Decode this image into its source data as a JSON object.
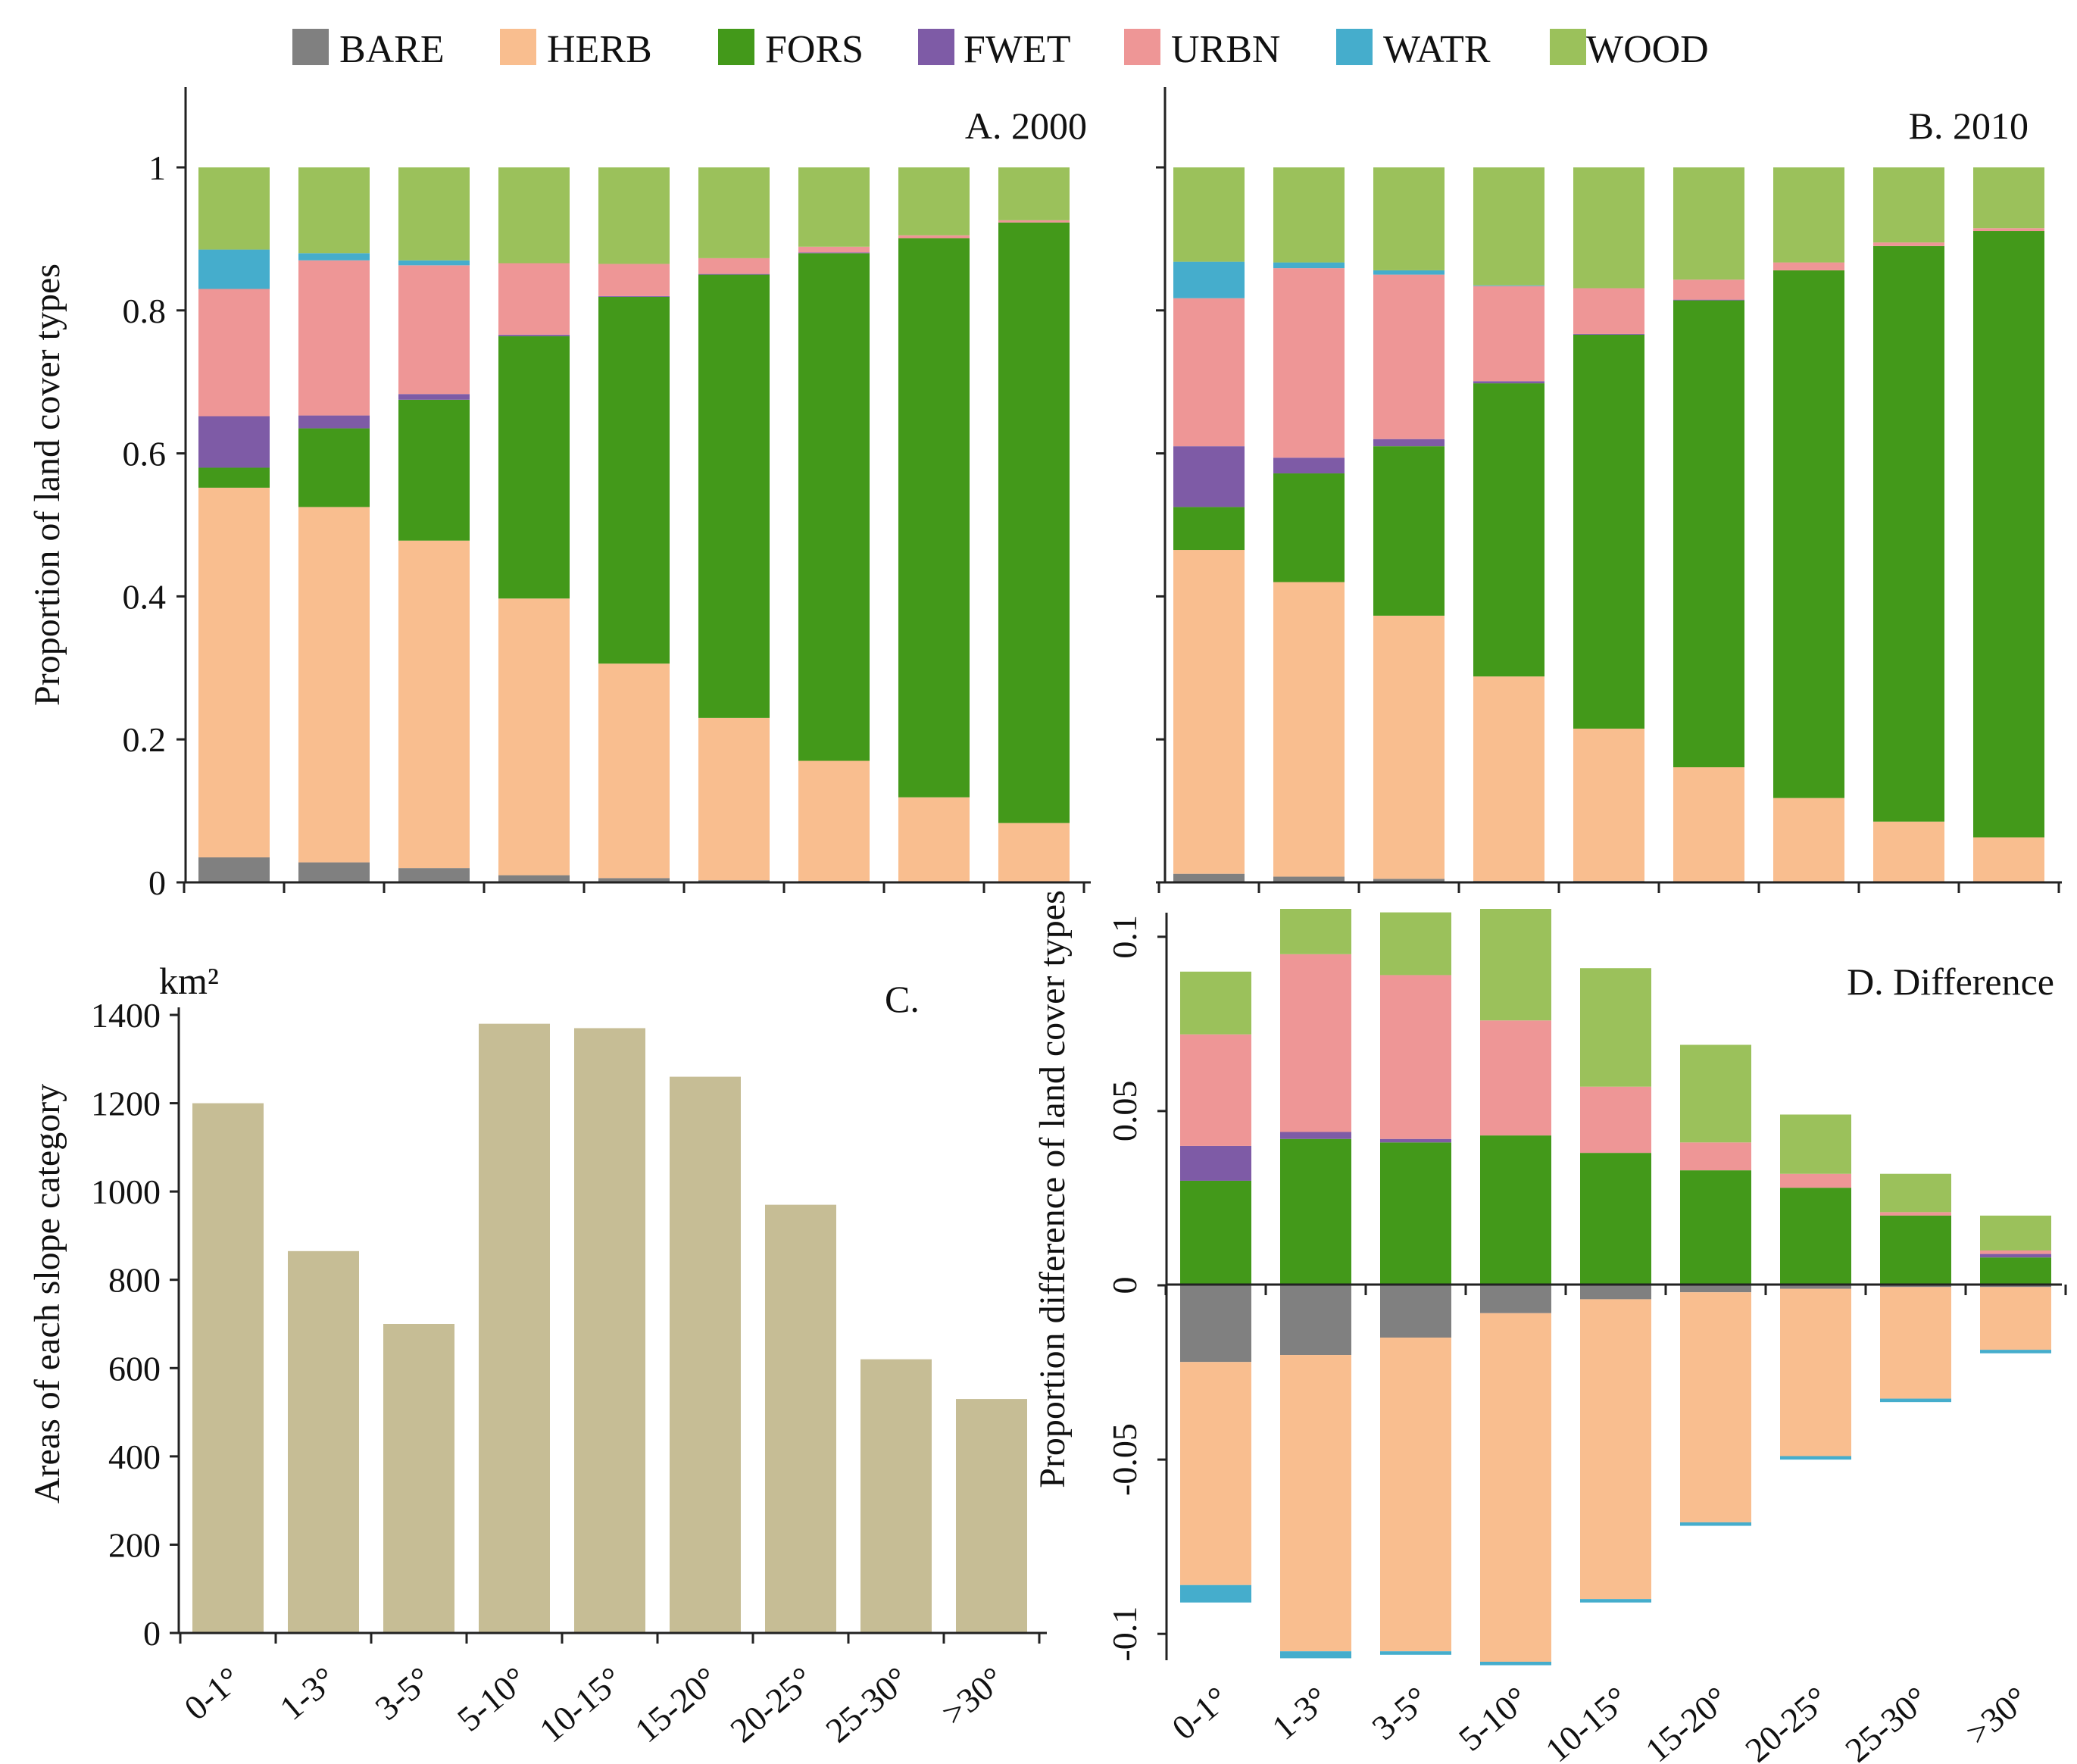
{
  "legend": [
    {
      "key": "BARE",
      "label": "BARE",
      "color": "#808080"
    },
    {
      "key": "HERB",
      "label": "HERB",
      "color": "#F9BE8F"
    },
    {
      "key": "FORS",
      "label": "FORS",
      "color": "#43991A"
    },
    {
      "key": "FWET",
      "label": "FWET",
      "color": "#7E5BA6"
    },
    {
      "key": "URBN",
      "label": "URBN",
      "color": "#EE9696"
    },
    {
      "key": "WATR",
      "label": "WATR",
      "color": "#45ADCC"
    },
    {
      "key": "WOOD",
      "label": "WOOD",
      "color": "#9BC15B"
    }
  ],
  "chart_data": [
    {
      "id": "A",
      "type": "bar",
      "stacked": true,
      "title": "A. 2000",
      "xlabel": "",
      "ylabel": "Proportion of land cover types",
      "ylim": [
        0,
        1
      ],
      "yticks": [
        0,
        0.2,
        0.4,
        0.6,
        0.8,
        1
      ],
      "ytick_labels": [
        "0",
        "0.2",
        "0.4",
        "0.6",
        "0.8",
        "1"
      ],
      "categories": [
        "0-1°",
        "1-3°",
        "3-5°",
        "5-10°",
        "10-15°",
        "15-20°",
        "20-25°",
        "25-30°",
        ">30°"
      ],
      "series": [
        {
          "name": "BARE",
          "values": [
            0.035,
            0.028,
            0.02,
            0.01,
            0.006,
            0.003,
            0.002,
            0.001,
            0.001
          ]
        },
        {
          "name": "HERB",
          "values": [
            0.517,
            0.497,
            0.458,
            0.387,
            0.3,
            0.227,
            0.168,
            0.118,
            0.082
          ]
        },
        {
          "name": "FORS",
          "values": [
            0.028,
            0.11,
            0.197,
            0.367,
            0.513,
            0.62,
            0.71,
            0.782,
            0.84
          ]
        },
        {
          "name": "FWET",
          "values": [
            0.072,
            0.018,
            0.008,
            0.002,
            0.001,
            0.001,
            0.001,
            0.0,
            0.0
          ]
        },
        {
          "name": "URBN",
          "values": [
            0.178,
            0.217,
            0.18,
            0.1,
            0.045,
            0.022,
            0.008,
            0.004,
            0.003
          ]
        },
        {
          "name": "WATR",
          "values": [
            0.055,
            0.01,
            0.007,
            0.0,
            0.0,
            0.0,
            0.0,
            0.0,
            0.0
          ]
        },
        {
          "name": "WOOD",
          "values": [
            0.115,
            0.12,
            0.13,
            0.134,
            0.135,
            0.127,
            0.111,
            0.095,
            0.074
          ]
        }
      ]
    },
    {
      "id": "B",
      "type": "bar",
      "stacked": true,
      "title": "B. 2010",
      "xlabel": "",
      "ylabel": "",
      "ylim": [
        0,
        1
      ],
      "yticks": [
        0,
        0.2,
        0.4,
        0.6,
        0.8,
        1
      ],
      "categories": [
        "0-1°",
        "1-3°",
        "3-5°",
        "5-10°",
        "10-15°",
        "15-20°",
        "20-25°",
        "25-30°",
        ">30°"
      ],
      "series": [
        {
          "name": "BARE",
          "values": [
            0.012,
            0.008,
            0.005,
            0.002,
            0.002,
            0.001,
            0.001,
            0.001,
            0.001
          ]
        },
        {
          "name": "HERB",
          "values": [
            0.453,
            0.412,
            0.368,
            0.286,
            0.213,
            0.16,
            0.117,
            0.084,
            0.062
          ]
        },
        {
          "name": "FORS",
          "values": [
            0.06,
            0.152,
            0.237,
            0.41,
            0.551,
            0.653,
            0.738,
            0.805,
            0.848
          ]
        },
        {
          "name": "FWET",
          "values": [
            0.085,
            0.022,
            0.01,
            0.003,
            0.001,
            0.001,
            0.0,
            0.0,
            0.0
          ]
        },
        {
          "name": "URBN",
          "values": [
            0.207,
            0.265,
            0.23,
            0.133,
            0.064,
            0.028,
            0.011,
            0.005,
            0.004
          ]
        },
        {
          "name": "WATR",
          "values": [
            0.051,
            0.008,
            0.006,
            0.001,
            0.0,
            0.0,
            0.0,
            0.0,
            0.0
          ]
        },
        {
          "name": "WOOD",
          "values": [
            0.132,
            0.133,
            0.144,
            0.165,
            0.169,
            0.157,
            0.133,
            0.105,
            0.085
          ]
        }
      ]
    },
    {
      "id": "C",
      "type": "bar",
      "title": "C.",
      "unit_label": "km²",
      "xlabel": "",
      "ylabel": "Areas of each slope category",
      "ylim": [
        0,
        1400
      ],
      "yticks": [
        0,
        200,
        400,
        600,
        800,
        1000,
        1200,
        1400
      ],
      "ytick_labels": [
        "0",
        "200",
        "400",
        "600",
        "800",
        "1000",
        "1200",
        "1400"
      ],
      "categories": [
        "0-1°",
        "1-3°",
        "3-5°",
        "5-10°",
        "10-15°",
        "15-20°",
        "20-25°",
        "25-30°",
        ">30°"
      ],
      "color": "#C6BD95",
      "values": [
        1200,
        865,
        700,
        1380,
        1370,
        1260,
        970,
        620,
        530
      ]
    },
    {
      "id": "D",
      "type": "bar",
      "stacked": true,
      "diverging": true,
      "title": "D. Difference",
      "xlabel": "",
      "ylabel": "Proportion difference of land cover types",
      "ylim": [
        -0.108,
        0.108
      ],
      "yticks": [
        -0.1,
        -0.05,
        0,
        0.05,
        0.1
      ],
      "ytick_labels": [
        "-0.1",
        "-0.05",
        "0",
        "0.05",
        "0.1"
      ],
      "categories": [
        "0-1°",
        "1-3°",
        "3-5°",
        "5-10°",
        "10-15°",
        "15-20°",
        "20-25°",
        "25-30°",
        ">30°"
      ],
      "series": [
        {
          "name": "BARE",
          "values": [
            -0.022,
            -0.02,
            -0.015,
            -0.008,
            -0.004,
            -0.002,
            -0.001,
            -0.0005,
            -0.0005
          ]
        },
        {
          "name": "HERB",
          "values": [
            -0.064,
            -0.085,
            -0.09,
            -0.1,
            -0.086,
            -0.066,
            -0.048,
            -0.032,
            -0.018
          ]
        },
        {
          "name": "FORS",
          "values": [
            0.03,
            0.042,
            0.041,
            0.043,
            0.038,
            0.033,
            0.028,
            0.02,
            0.008
          ]
        },
        {
          "name": "FWET",
          "values": [
            0.01,
            0.002,
            0.001,
            0.0,
            0.0,
            0.0,
            0.0,
            0.0,
            0.001
          ]
        },
        {
          "name": "URBN",
          "values": [
            0.032,
            0.051,
            0.047,
            0.033,
            0.019,
            0.008,
            0.004,
            0.001,
            0.001
          ]
        },
        {
          "name": "WATR",
          "values": [
            -0.005,
            -0.002,
            -0.001,
            -0.001,
            -0.001,
            -0.001,
            -0.001,
            -0.001,
            -0.001
          ]
        },
        {
          "name": "WOOD",
          "values": [
            0.018,
            0.013,
            0.018,
            0.032,
            0.034,
            0.028,
            0.017,
            0.011,
            0.01
          ]
        }
      ]
    }
  ]
}
